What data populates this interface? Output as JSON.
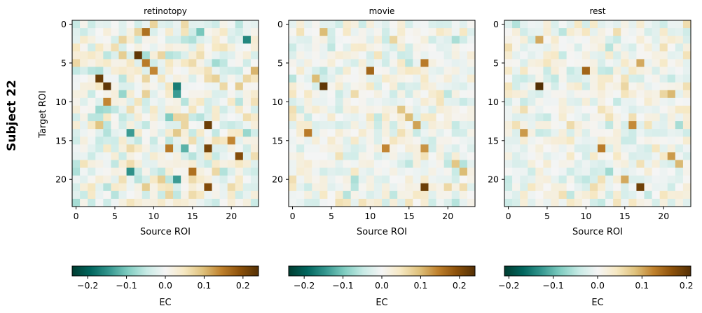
{
  "figure": {
    "subject_label": "Subject 22",
    "ylabel": "Target ROI",
    "xlabel": "Source ROI",
    "colorbar_label": "EC"
  },
  "chart_data": [
    {
      "type": "heatmap",
      "title": "retinotopy",
      "xlabel": "Source ROI",
      "ylabel": "Target ROI",
      "size": 24,
      "x_ticks": [
        0,
        5,
        10,
        15,
        20
      ],
      "y_ticks": [
        0,
        5,
        10,
        15,
        20
      ],
      "colormap": "BrBG_r",
      "vmin": -0.24,
      "vmax": 0.24,
      "colorbar_ticks": [
        -0.2,
        -0.1,
        0.0,
        0.1,
        0.2
      ],
      "colorbar_tick_labels": [
        "−0.2",
        "−0.1",
        "0.0",
        "0.1",
        "0.2"
      ],
      "colorbar_label": "EC",
      "seed": 11,
      "noise": 0.085,
      "highlights": [
        {
          "row": 4,
          "col": 8,
          "value": 0.23
        },
        {
          "row": 7,
          "col": 3,
          "value": 0.22
        },
        {
          "row": 8,
          "col": 4,
          "value": 0.23
        },
        {
          "row": 13,
          "col": 17,
          "value": 0.22
        },
        {
          "row": 16,
          "col": 17,
          "value": 0.21
        },
        {
          "row": 17,
          "col": 21,
          "value": 0.2
        },
        {
          "row": 21,
          "col": 17,
          "value": 0.2
        },
        {
          "row": 1,
          "col": 9,
          "value": 0.16
        },
        {
          "row": 5,
          "col": 9,
          "value": 0.15
        },
        {
          "row": 6,
          "col": 10,
          "value": 0.14
        },
        {
          "row": 10,
          "col": 4,
          "value": 0.14
        },
        {
          "row": 16,
          "col": 12,
          "value": 0.15
        },
        {
          "row": 19,
          "col": 15,
          "value": 0.16
        },
        {
          "row": 15,
          "col": 20,
          "value": 0.14
        },
        {
          "row": 2,
          "col": 22,
          "value": -0.16
        },
        {
          "row": 8,
          "col": 13,
          "value": -0.17
        },
        {
          "row": 9,
          "col": 13,
          "value": -0.14
        },
        {
          "row": 14,
          "col": 7,
          "value": -0.14
        },
        {
          "row": 19,
          "col": 7,
          "value": -0.15
        },
        {
          "row": 20,
          "col": 13,
          "value": -0.14
        },
        {
          "row": 16,
          "col": 14,
          "value": -0.12
        }
      ]
    },
    {
      "type": "heatmap",
      "title": "movie",
      "xlabel": "Source ROI",
      "ylabel": "",
      "size": 24,
      "x_ticks": [
        0,
        5,
        10,
        15,
        20
      ],
      "y_ticks": [
        0,
        5,
        10,
        15,
        20
      ],
      "colormap": "BrBG_r",
      "vmin": -0.24,
      "vmax": 0.24,
      "colorbar_ticks": [
        -0.2,
        -0.1,
        0.0,
        0.1,
        0.2
      ],
      "colorbar_tick_labels": [
        "−0.2",
        "−0.1",
        "0.0",
        "0.1",
        "0.2"
      ],
      "colorbar_label": "EC",
      "seed": 23,
      "noise": 0.06,
      "highlights": [
        {
          "row": 8,
          "col": 4,
          "value": 0.23
        },
        {
          "row": 21,
          "col": 17,
          "value": 0.22
        },
        {
          "row": 6,
          "col": 10,
          "value": 0.17
        },
        {
          "row": 5,
          "col": 17,
          "value": 0.15
        },
        {
          "row": 14,
          "col": 2,
          "value": 0.15
        },
        {
          "row": 16,
          "col": 12,
          "value": 0.14
        },
        {
          "row": 16,
          "col": 17,
          "value": 0.13
        },
        {
          "row": 13,
          "col": 16,
          "value": 0.12
        },
        {
          "row": 1,
          "col": 4,
          "value": 0.1
        },
        {
          "row": 12,
          "col": 15,
          "value": 0.1
        },
        {
          "row": 19,
          "col": 22,
          "value": 0.1
        },
        {
          "row": 11,
          "col": 14,
          "value": 0.09
        },
        {
          "row": 18,
          "col": 21,
          "value": 0.09
        },
        {
          "row": 7,
          "col": 3,
          "value": 0.1
        }
      ]
    },
    {
      "type": "heatmap",
      "title": "rest",
      "xlabel": "Source ROI",
      "ylabel": "",
      "size": 24,
      "x_ticks": [
        0,
        5,
        10,
        15,
        20
      ],
      "y_ticks": [
        0,
        5,
        10,
        15,
        20
      ],
      "colormap": "BrBG_r",
      "vmin": -0.21,
      "vmax": 0.21,
      "colorbar_ticks": [
        -0.2,
        -0.1,
        0.0,
        0.1,
        0.2
      ],
      "colorbar_tick_labels": [
        "−0.2",
        "−0.1",
        "0.0",
        "0.1",
        "0.2"
      ],
      "colorbar_label": "EC",
      "seed": 37,
      "noise": 0.055,
      "highlights": [
        {
          "row": 8,
          "col": 4,
          "value": 0.21
        },
        {
          "row": 21,
          "col": 17,
          "value": 0.19
        },
        {
          "row": 6,
          "col": 10,
          "value": 0.15
        },
        {
          "row": 13,
          "col": 16,
          "value": 0.12
        },
        {
          "row": 16,
          "col": 12,
          "value": 0.13
        },
        {
          "row": 14,
          "col": 2,
          "value": 0.11
        },
        {
          "row": 5,
          "col": 17,
          "value": 0.1
        },
        {
          "row": 17,
          "col": 21,
          "value": 0.11
        },
        {
          "row": 2,
          "col": 4,
          "value": 0.1
        },
        {
          "row": 9,
          "col": 21,
          "value": 0.09
        },
        {
          "row": 20,
          "col": 15,
          "value": 0.1
        },
        {
          "row": 18,
          "col": 22,
          "value": 0.09
        }
      ]
    }
  ]
}
